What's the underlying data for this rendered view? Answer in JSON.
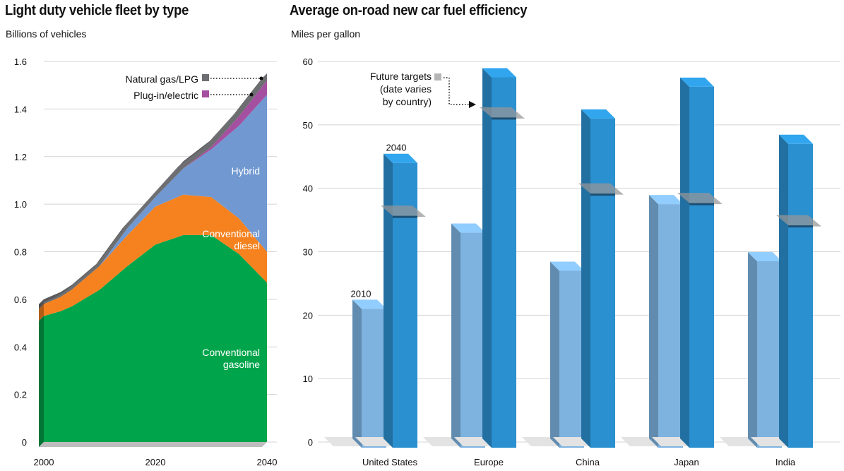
{
  "left_chart": {
    "title": "Light duty vehicle fleet by type",
    "subtitle": "Billions of vehicles"
  },
  "right_chart": {
    "title": "Average on-road new car fuel efficiency",
    "subtitle": "Miles per gallon"
  },
  "chart_data": [
    {
      "type": "area",
      "title": "Light duty vehicle fleet by type",
      "ylabel": "Billions of vehicles",
      "stacked": true,
      "x": [
        2000,
        2003,
        2005,
        2010,
        2015,
        2020,
        2025,
        2030,
        2035,
        2040
      ],
      "xticks": [
        "2000",
        "2020",
        "2040"
      ],
      "yticks": [
        "0",
        "0.2",
        "0.4",
        "0.6",
        "0.8",
        "1.0",
        "1.2",
        "1.4",
        "1.6"
      ],
      "ylim": [
        0,
        1.6
      ],
      "grid": true,
      "series": [
        {
          "name": "Conventional gasoline",
          "color": "#00a44b",
          "values": [
            0.53,
            0.55,
            0.57,
            0.64,
            0.74,
            0.83,
            0.87,
            0.87,
            0.79,
            0.67
          ]
        },
        {
          "name": "Conventional diesel",
          "color": "#f5821f",
          "values": [
            0.05,
            0.06,
            0.07,
            0.1,
            0.13,
            0.16,
            0.17,
            0.16,
            0.15,
            0.13
          ]
        },
        {
          "name": "Hybrid",
          "color": "#7198d0",
          "values": [
            0.0,
            0.0,
            0.0,
            0.0,
            0.03,
            0.04,
            0.11,
            0.2,
            0.39,
            0.66
          ]
        },
        {
          "name": "Plug-in/electric",
          "color": "#a54fa0",
          "values": [
            0.0,
            0.0,
            0.0,
            0.0,
            0.0,
            0.0,
            0.0,
            0.01,
            0.04,
            0.06
          ]
        },
        {
          "name": "Natural gas/LPG",
          "color": "#6d6e71",
          "values": [
            0.02,
            0.02,
            0.02,
            0.02,
            0.02,
            0.02,
            0.03,
            0.03,
            0.03,
            0.03
          ]
        }
      ],
      "labels": {
        "Natural gas/LPG": "Natural gas/LPG",
        "Plug-in/electric": "Plug-in/electric",
        "Hybrid": "Hybrid",
        "diesel_1": "Conventional",
        "diesel_2": "diesel",
        "gasoline_1": "Conventional",
        "gasoline_2": "gasoline"
      }
    },
    {
      "type": "bar",
      "title": "Average on-road new car fuel efficiency",
      "ylabel": "Miles per gallon",
      "categories": [
        "United States",
        "Europe",
        "China",
        "Japan",
        "India"
      ],
      "yticks": [
        "0",
        "10",
        "20",
        "30",
        "40",
        "50",
        "60"
      ],
      "ylim": [
        0,
        60
      ],
      "grid": true,
      "series": [
        {
          "name": "2010",
          "color": "#7eb3e0",
          "values": [
            21,
            33,
            27,
            37.5,
            28.5
          ]
        },
        {
          "name": "2040",
          "color": "#2b90cf",
          "values": [
            44,
            57.5,
            51,
            56,
            47
          ]
        }
      ],
      "future_targets": [
        35.5,
        51,
        39,
        37.5,
        34
      ],
      "annotations": {
        "series_2010": "2010",
        "series_2040": "2040",
        "targets_1": "Future targets",
        "targets_2": "(date varies",
        "targets_3": "by country)"
      }
    }
  ]
}
